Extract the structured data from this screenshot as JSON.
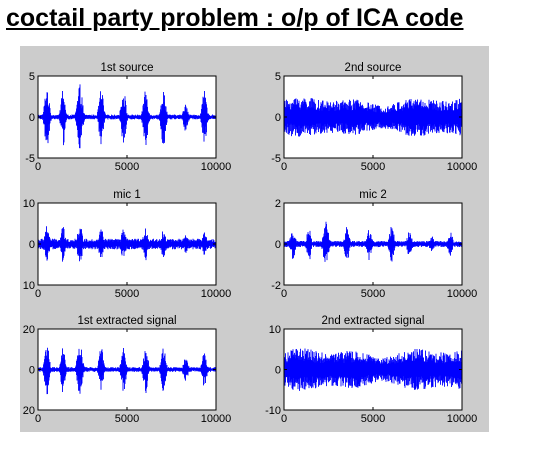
{
  "page": {
    "title": "coctail party problem : o/p of ICA code"
  },
  "colors": {
    "figure_background": "#cccccc",
    "axes_background": "#ffffff",
    "signal": "#0000ff"
  },
  "chart_data": [
    {
      "type": "line",
      "title": "1st source",
      "xlim": [
        0,
        10000
      ],
      "ylim": [
        -5,
        5
      ],
      "xticks": [
        "0",
        "5000",
        "10000"
      ],
      "yticks": [
        "5",
        "0",
        "-5"
      ],
      "signal_kind": "bursty",
      "envelope": {
        "peak": 4.0,
        "floor": 0.3
      },
      "bursts": [
        {
          "center": 500,
          "width": 400,
          "amp": 4.0
        },
        {
          "center": 1400,
          "width": 350,
          "amp": 3.8
        },
        {
          "center": 2350,
          "width": 450,
          "amp": 4.0
        },
        {
          "center": 3550,
          "width": 400,
          "amp": 3.5
        },
        {
          "center": 4800,
          "width": 400,
          "amp": 3.6
        },
        {
          "center": 6050,
          "width": 400,
          "amp": 3.8
        },
        {
          "center": 7050,
          "width": 400,
          "amp": 3.6
        },
        {
          "center": 8300,
          "width": 400,
          "amp": 1.8
        },
        {
          "center": 9350,
          "width": 400,
          "amp": 3.2
        }
      ],
      "series": [
        {
          "values": []
        }
      ]
    },
    {
      "type": "line",
      "title": "2nd source",
      "xlim": [
        0,
        10000
      ],
      "ylim": [
        -5,
        5
      ],
      "xticks": [
        "0",
        "5000",
        "10000"
      ],
      "yticks": [
        "5",
        "0",
        "-5"
      ],
      "signal_kind": "noise",
      "envelope": {
        "peak": 2.6,
        "floor": 1.4
      },
      "bursts": [],
      "series": [
        {
          "values": []
        }
      ]
    },
    {
      "type": "line",
      "title": "mic 1",
      "xlim": [
        0,
        10000
      ],
      "ylim": [
        -10,
        10
      ],
      "xticks": [
        "0",
        "5000",
        "10000"
      ],
      "yticks": [
        "10",
        "0",
        "10"
      ],
      "signal_kind": "bursty",
      "envelope": {
        "peak": 5.0,
        "floor": 1.3
      },
      "bursts": [
        {
          "center": 500,
          "width": 400,
          "amp": 5.0
        },
        {
          "center": 1400,
          "width": 350,
          "amp": 4.5
        },
        {
          "center": 2350,
          "width": 450,
          "amp": 4.8
        },
        {
          "center": 3550,
          "width": 400,
          "amp": 4.0
        },
        {
          "center": 4800,
          "width": 400,
          "amp": 3.8
        },
        {
          "center": 6050,
          "width": 400,
          "amp": 4.2
        },
        {
          "center": 7050,
          "width": 400,
          "amp": 3.5
        },
        {
          "center": 8300,
          "width": 400,
          "amp": 2.2
        },
        {
          "center": 9350,
          "width": 400,
          "amp": 3.0
        }
      ],
      "series": [
        {
          "values": []
        }
      ]
    },
    {
      "type": "line",
      "title": "mic 2",
      "xlim": [
        0,
        10000
      ],
      "ylim": [
        -2,
        2
      ],
      "xticks": [
        "0",
        "5000",
        "10000"
      ],
      "yticks": [
        "2",
        "0",
        "-2"
      ],
      "signal_kind": "bursty",
      "envelope": {
        "peak": 1.0,
        "floor": 0.15
      },
      "bursts": [
        {
          "center": 500,
          "width": 400,
          "amp": 0.8
        },
        {
          "center": 1400,
          "width": 350,
          "amp": 0.9
        },
        {
          "center": 2350,
          "width": 450,
          "amp": 1.1
        },
        {
          "center": 3550,
          "width": 400,
          "amp": 0.9
        },
        {
          "center": 4800,
          "width": 400,
          "amp": 0.8
        },
        {
          "center": 6050,
          "width": 400,
          "amp": 0.9
        },
        {
          "center": 7050,
          "width": 400,
          "amp": 0.7
        },
        {
          "center": 8300,
          "width": 400,
          "amp": 0.4
        },
        {
          "center": 9350,
          "width": 400,
          "amp": 0.6
        }
      ],
      "series": [
        {
          "values": []
        }
      ]
    },
    {
      "type": "line",
      "title": "1st extracted signal",
      "xlim": [
        0,
        10000
      ],
      "ylim": [
        -20,
        20
      ],
      "xticks": [
        "0",
        "5000",
        "10000"
      ],
      "yticks": [
        "20",
        "0",
        "20"
      ],
      "signal_kind": "bursty",
      "envelope": {
        "peak": 14.0,
        "floor": 1.2
      },
      "bursts": [
        {
          "center": 500,
          "width": 400,
          "amp": 13.0
        },
        {
          "center": 1400,
          "width": 350,
          "amp": 12.0
        },
        {
          "center": 2350,
          "width": 450,
          "amp": 13.0
        },
        {
          "center": 3550,
          "width": 400,
          "amp": 11.0
        },
        {
          "center": 4800,
          "width": 400,
          "amp": 11.5
        },
        {
          "center": 6050,
          "width": 400,
          "amp": 12.0
        },
        {
          "center": 7050,
          "width": 400,
          "amp": 11.0
        },
        {
          "center": 8300,
          "width": 400,
          "amp": 6.0
        },
        {
          "center": 9350,
          "width": 400,
          "amp": 9.0
        }
      ],
      "series": [
        {
          "values": []
        }
      ]
    },
    {
      "type": "line",
      "title": "2nd extracted signal",
      "xlim": [
        0,
        10000
      ],
      "ylim": [
        -10,
        10
      ],
      "xticks": [
        "0",
        "5000",
        "10000"
      ],
      "yticks": [
        "10",
        "0",
        "-10"
      ],
      "signal_kind": "noise",
      "envelope": {
        "peak": 5.5,
        "floor": 3.0
      },
      "bursts": [],
      "series": [
        {
          "values": []
        }
      ]
    }
  ]
}
